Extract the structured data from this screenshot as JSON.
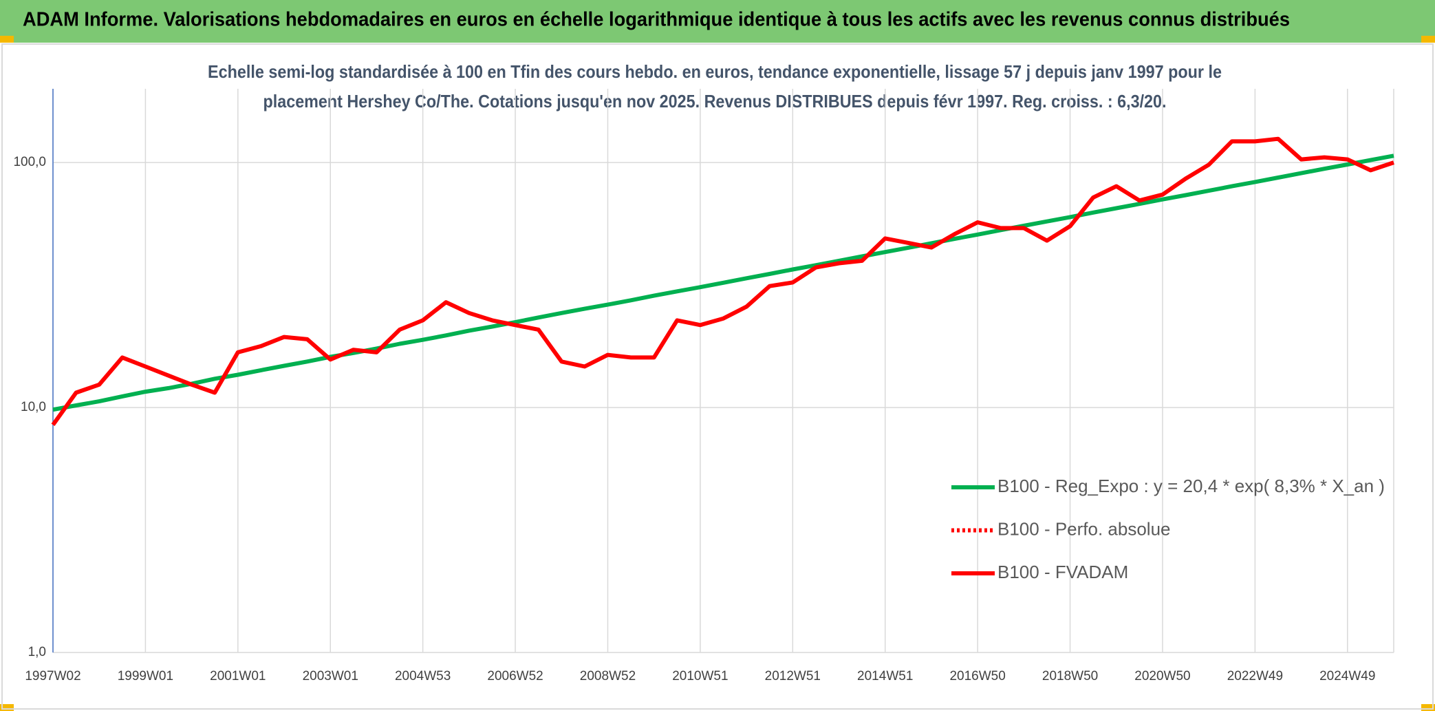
{
  "chart_data": {
    "type": "line",
    "title": "ADAM Informe. Valorisations hebdomadaires en euros en échelle logarithmique identique à tous les actifs avec les revenus connus distribués",
    "subtitle": [
      "Echelle semi-log standardisée à 100 en Tfin des cours hebdo. en euros, tendance exponentielle, lissage 57 j depuis janv 1997 pour le",
      "placement Hershey Co/The. Cotations jusqu'en nov 2025. Revenus DISTRIBUES depuis févr 1997. Reg. croiss. : 6,3/20."
    ],
    "categories": [
      "1997W02",
      null,
      null,
      null,
      "1999W01",
      null,
      null,
      null,
      "2001W01",
      null,
      null,
      null,
      "2003W01",
      null,
      null,
      null,
      "2004W53",
      null,
      null,
      null,
      "2006W52",
      null,
      null,
      null,
      "2008W52",
      null,
      null,
      null,
      "2010W51",
      null,
      null,
      null,
      "2012W51",
      null,
      null,
      null,
      "2014W51",
      null,
      null,
      null,
      "2016W50",
      null,
      null,
      null,
      "2018W50",
      null,
      null,
      null,
      "2020W50",
      null,
      null,
      null,
      "2022W49",
      null,
      null,
      null,
      "2024W49",
      null,
      null
    ],
    "series": [
      {
        "name": "B100 - Reg_Expo : y = 20,4 * exp( 8,3% *  X_an )",
        "color": "#00b050",
        "style": "solid",
        "values": [
          9.8,
          10.2,
          10.6,
          11.1,
          11.6,
          12.0,
          12.5,
          13.1,
          13.6,
          14.2,
          14.8,
          15.4,
          16.1,
          16.7,
          17.4,
          18.2,
          18.9,
          19.7,
          20.6,
          21.4,
          22.3,
          23.3,
          24.3,
          25.3,
          26.3,
          27.4,
          28.6,
          29.8,
          31.0,
          32.3,
          33.7,
          35.1,
          36.6,
          38.1,
          39.7,
          41.4,
          43.1,
          44.9,
          46.8,
          48.8,
          50.8,
          53.0,
          55.2,
          57.5,
          59.9,
          62.5,
          65.1,
          67.8,
          70.7,
          73.6,
          76.7,
          80.0,
          83.3,
          86.8,
          90.5,
          94.3,
          98.2,
          102.3,
          106.6
        ]
      },
      {
        "name": "B100 - Perfo. absolue",
        "color": "#ff0000",
        "style": "dotted",
        "values": [
          null,
          null,
          null,
          null,
          null,
          null,
          null,
          null,
          null,
          null,
          null,
          null,
          null,
          null,
          null,
          null,
          null,
          null,
          null,
          null,
          null,
          null,
          null,
          null,
          null,
          null,
          null,
          null,
          null,
          null,
          null,
          null,
          null,
          null,
          null,
          null,
          null,
          null,
          null,
          null,
          null,
          null,
          null,
          null,
          null,
          null,
          null,
          null,
          null,
          null,
          null,
          null,
          null,
          null,
          null,
          null,
          null,
          null,
          null
        ]
      },
      {
        "name": "B100 - FVADAM",
        "color": "#ff0000",
        "style": "solid",
        "values": [
          8.5,
          11.5,
          12.4,
          16.0,
          14.7,
          13.5,
          12.4,
          11.5,
          16.8,
          17.8,
          19.4,
          19.0,
          15.7,
          17.2,
          16.8,
          20.8,
          22.7,
          26.9,
          24.3,
          22.7,
          21.7,
          20.8,
          15.4,
          14.7,
          16.4,
          16.0,
          16.0,
          22.7,
          21.7,
          23.1,
          25.8,
          31.3,
          32.4,
          37.3,
          38.8,
          39.7,
          49,
          47,
          45,
          51,
          57,
          54,
          54,
          48,
          55,
          72,
          80,
          70,
          74,
          86,
          98,
          122,
          122,
          125,
          103,
          105,
          103,
          93,
          100
        ]
      }
    ],
    "log_scale": true,
    "ylim": [
      1,
      200
    ],
    "yticks": [
      {
        "value": 1,
        "label": "1,0"
      },
      {
        "value": 10,
        "label": "10,0"
      },
      {
        "value": 100,
        "label": "100,0"
      }
    ],
    "grid": true,
    "legend": "right"
  }
}
